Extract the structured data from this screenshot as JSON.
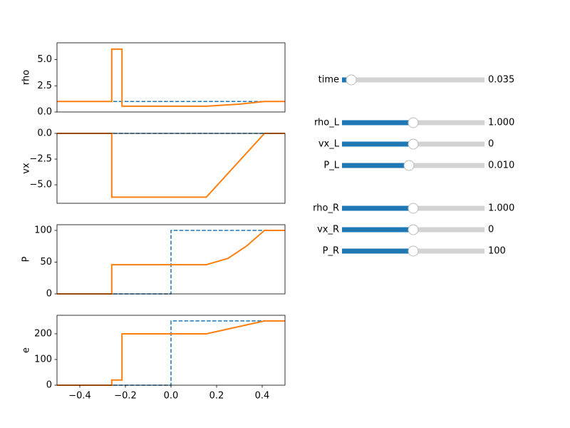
{
  "chart_data": [
    {
      "type": "line",
      "ylabel": "rho",
      "xlim": [
        -0.5,
        0.5
      ],
      "ylim": [
        0,
        6.6
      ],
      "yticks": [
        {
          "value": 0,
          "label": "0.0"
        },
        {
          "value": 2.5,
          "label": "2.5"
        },
        {
          "value": 5,
          "label": "5.0"
        }
      ],
      "series": [
        {
          "color": "#1f77b4",
          "dashed": true,
          "x": [
            -0.5,
            0.5
          ],
          "values": [
            1,
            1
          ]
        },
        {
          "color": "#ff7f0e",
          "dashed": false,
          "x": [
            -0.5,
            -0.26,
            -0.26,
            -0.215,
            -0.215,
            0.155,
            0.3,
            0.41,
            0.5
          ],
          "values": [
            1,
            1,
            6,
            6,
            0.55,
            0.55,
            0.75,
            1,
            1
          ]
        }
      ]
    },
    {
      "type": "line",
      "ylabel": "vx",
      "xlim": [
        -0.5,
        0.5
      ],
      "ylim": [
        -6.8,
        0
      ],
      "yticks": [
        {
          "value": 0,
          "label": "0.0"
        },
        {
          "value": -2.5,
          "label": "−2.5"
        },
        {
          "value": -5,
          "label": "−5.0"
        }
      ],
      "series": [
        {
          "color": "#1f77b4",
          "dashed": true,
          "x": [
            -0.5,
            0.5
          ],
          "values": [
            0,
            0
          ]
        },
        {
          "color": "#ff7f0e",
          "dashed": false,
          "x": [
            -0.5,
            -0.26,
            -0.26,
            0.155,
            0.41,
            0.5
          ],
          "values": [
            0,
            0,
            -6.2,
            -6.2,
            0,
            0
          ]
        }
      ]
    },
    {
      "type": "line",
      "ylabel": "P",
      "xlim": [
        -0.5,
        0.5
      ],
      "ylim": [
        0,
        109
      ],
      "yticks": [
        0,
        50,
        100
      ],
      "series": [
        {
          "color": "#1f77b4",
          "dashed": true,
          "x": [
            -0.5,
            0,
            0,
            0.5
          ],
          "values": [
            0,
            0,
            100,
            100
          ]
        },
        {
          "color": "#ff7f0e",
          "dashed": false,
          "x": [
            -0.5,
            -0.26,
            -0.26,
            0.155,
            0.25,
            0.33,
            0.41,
            0.5
          ],
          "values": [
            0,
            0,
            46,
            46,
            56,
            75,
            100,
            100
          ]
        }
      ]
    },
    {
      "type": "line",
      "ylabel": "e",
      "xlim": [
        -0.5,
        0.5
      ],
      "ylim": [
        0,
        272
      ],
      "yticks": [
        0,
        100,
        200
      ],
      "xticks": [
        {
          "value": -0.4,
          "label": "−0.4"
        },
        {
          "value": -0.2,
          "label": "−0.2"
        },
        {
          "value": 0,
          "label": "0.0"
        },
        0.2,
        0.4
      ],
      "series": [
        {
          "color": "#1f77b4",
          "dashed": true,
          "x": [
            -0.5,
            0,
            0,
            0.5
          ],
          "values": [
            0,
            0,
            250,
            250
          ]
        },
        {
          "color": "#ff7f0e",
          "dashed": false,
          "x": [
            -0.5,
            -0.26,
            -0.26,
            -0.215,
            -0.215,
            0.155,
            0.41,
            0.5
          ],
          "values": [
            0,
            0,
            20,
            20,
            200,
            200,
            250,
            250
          ]
        }
      ]
    }
  ],
  "sliders": [
    {
      "label": "time",
      "value": "0.035"
    },
    {
      "label": "rho_L",
      "value": "1.000"
    },
    {
      "label": "vx_L",
      "value": "0"
    },
    {
      "label": "P_L",
      "value": "0.010"
    },
    {
      "label": "rho_R",
      "value": "1.000"
    },
    {
      "label": "vx_R",
      "value": "0"
    },
    {
      "label": "P_R",
      "value": "100"
    }
  ]
}
